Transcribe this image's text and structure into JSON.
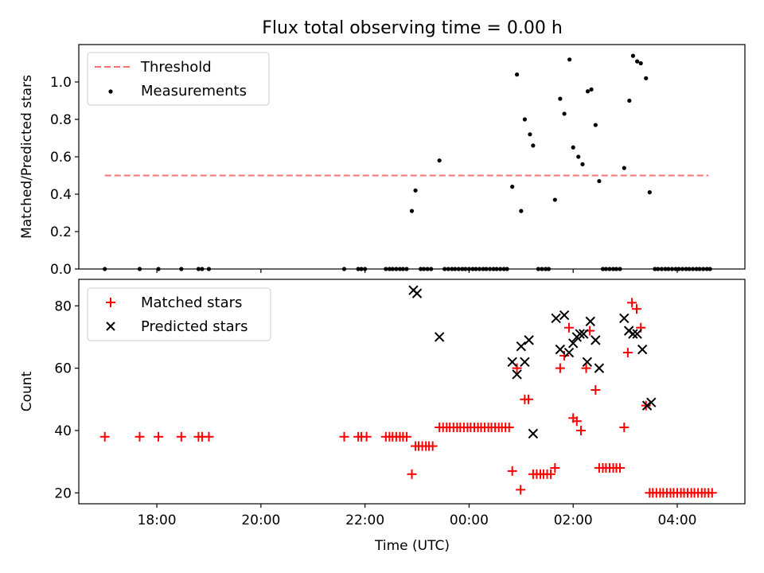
{
  "chart_data": [
    {
      "type": "scatter",
      "title": "Flux total observing time = 0.00 h",
      "xlabel": "",
      "ylabel": "Matched/Predicted stars",
      "x_unit": "hours since 00:00 UTC",
      "xlim": [
        -7.5,
        5.3
      ],
      "ylim": [
        0,
        1.2
      ],
      "yticks": [
        0.0,
        0.2,
        0.4,
        0.6,
        0.8,
        1.0
      ],
      "ytick_labels": [
        "0.0",
        "0.2",
        "0.4",
        "0.6",
        "0.8",
        "1.0"
      ],
      "legend_position": "upper-left",
      "threshold": {
        "name": "Threshold",
        "value": 0.5,
        "x_start": -7.0,
        "x_end": 4.6,
        "color": "#ff7070"
      },
      "series": [
        {
          "name": "Measurements",
          "color": "#000000",
          "marker": "dot",
          "points": [
            [
              -7.0,
              0
            ],
            [
              -6.33,
              0
            ],
            [
              -5.97,
              0
            ],
            [
              -5.53,
              0
            ],
            [
              -5.2,
              0
            ],
            [
              -5.13,
              0
            ],
            [
              -5.0,
              0
            ],
            [
              -2.4,
              0
            ],
            [
              -2.13,
              0
            ],
            [
              -2.07,
              0
            ],
            [
              -2.0,
              0
            ],
            [
              -1.6,
              0
            ],
            [
              -1.53,
              0
            ],
            [
              -1.47,
              0
            ],
            [
              -1.4,
              0
            ],
            [
              -1.33,
              0
            ],
            [
              -1.27,
              0
            ],
            [
              -1.2,
              0
            ],
            [
              -1.1,
              0.31
            ],
            [
              -1.03,
              0.42
            ],
            [
              -0.93,
              0
            ],
            [
              -0.87,
              0
            ],
            [
              -0.8,
              0
            ],
            [
              -0.73,
              0
            ],
            [
              -0.57,
              0.58
            ],
            [
              -0.47,
              0
            ],
            [
              -0.4,
              0
            ],
            [
              -0.33,
              0
            ],
            [
              -0.27,
              0
            ],
            [
              -0.2,
              0
            ],
            [
              -0.13,
              0
            ],
            [
              -0.07,
              0
            ],
            [
              0.0,
              0
            ],
            [
              0.07,
              0
            ],
            [
              0.13,
              0
            ],
            [
              0.2,
              0
            ],
            [
              0.27,
              0
            ],
            [
              0.33,
              0
            ],
            [
              0.4,
              0
            ],
            [
              0.47,
              0
            ],
            [
              0.53,
              0
            ],
            [
              0.6,
              0
            ],
            [
              0.67,
              0
            ],
            [
              0.73,
              0
            ],
            [
              0.83,
              0.44
            ],
            [
              0.92,
              1.04
            ],
            [
              1.0,
              0.31
            ],
            [
              1.07,
              0.8
            ],
            [
              1.17,
              0.72
            ],
            [
              1.23,
              0.66
            ],
            [
              1.33,
              0
            ],
            [
              1.4,
              0
            ],
            [
              1.47,
              0
            ],
            [
              1.53,
              0
            ],
            [
              1.65,
              0.37
            ],
            [
              1.75,
              0.91
            ],
            [
              1.83,
              0.83
            ],
            [
              1.93,
              1.12
            ],
            [
              2.0,
              0.65
            ],
            [
              2.1,
              0.6
            ],
            [
              2.18,
              0.56
            ],
            [
              2.28,
              0.95
            ],
            [
              2.35,
              0.96
            ],
            [
              2.43,
              0.77
            ],
            [
              2.5,
              0.47
            ],
            [
              2.57,
              0
            ],
            [
              2.63,
              0
            ],
            [
              2.7,
              0
            ],
            [
              2.77,
              0
            ],
            [
              2.83,
              0
            ],
            [
              2.9,
              0
            ],
            [
              2.98,
              0.54
            ],
            [
              3.08,
              0.9
            ],
            [
              3.15,
              1.14
            ],
            [
              3.23,
              1.11
            ],
            [
              3.3,
              1.1
            ],
            [
              3.4,
              1.02
            ],
            [
              3.47,
              0.41
            ],
            [
              3.57,
              0
            ],
            [
              3.63,
              0
            ],
            [
              3.7,
              0
            ],
            [
              3.77,
              0
            ],
            [
              3.83,
              0
            ],
            [
              3.9,
              0
            ],
            [
              3.97,
              0
            ],
            [
              4.03,
              0
            ],
            [
              4.1,
              0
            ],
            [
              4.17,
              0
            ],
            [
              4.23,
              0
            ],
            [
              4.3,
              0
            ],
            [
              4.37,
              0
            ],
            [
              4.43,
              0
            ],
            [
              4.5,
              0
            ],
            [
              4.57,
              0
            ],
            [
              4.63,
              0
            ]
          ]
        }
      ]
    },
    {
      "type": "scatter",
      "title": "",
      "xlabel": "Time (UTC)",
      "ylabel": "Count",
      "x_unit": "hours since 00:00 UTC",
      "xlim": [
        -7.5,
        5.3
      ],
      "ylim": [
        16.5,
        88.5
      ],
      "xticks": [
        -6,
        -4,
        -2,
        0,
        2,
        4
      ],
      "xtick_labels": [
        "18:00",
        "20:00",
        "22:00",
        "00:00",
        "02:00",
        "04:00"
      ],
      "yticks": [
        20,
        40,
        60,
        80
      ],
      "ytick_labels": [
        "20",
        "40",
        "60",
        "80"
      ],
      "legend_position": "upper-left",
      "series": [
        {
          "name": "Matched stars",
          "color": "#ff0000",
          "marker": "plus",
          "points": [
            [
              -7.0,
              38
            ],
            [
              -6.33,
              38
            ],
            [
              -5.97,
              38
            ],
            [
              -5.53,
              38
            ],
            [
              -5.2,
              38
            ],
            [
              -5.13,
              38
            ],
            [
              -5.0,
              38
            ],
            [
              -2.4,
              38
            ],
            [
              -2.13,
              38
            ],
            [
              -2.07,
              38
            ],
            [
              -1.97,
              38
            ],
            [
              -1.6,
              38
            ],
            [
              -1.53,
              38
            ],
            [
              -1.47,
              38
            ],
            [
              -1.4,
              38
            ],
            [
              -1.33,
              38
            ],
            [
              -1.27,
              38
            ],
            [
              -1.2,
              38
            ],
            [
              -1.1,
              26
            ],
            [
              -1.03,
              35
            ],
            [
              -0.97,
              35
            ],
            [
              -0.9,
              35
            ],
            [
              -0.83,
              35
            ],
            [
              -0.77,
              35
            ],
            [
              -0.7,
              35
            ],
            [
              -0.57,
              41
            ],
            [
              -0.5,
              41
            ],
            [
              -0.43,
              41
            ],
            [
              -0.37,
              41
            ],
            [
              -0.3,
              41
            ],
            [
              -0.23,
              41
            ],
            [
              -0.17,
              41
            ],
            [
              -0.1,
              41
            ],
            [
              -0.03,
              41
            ],
            [
              0.03,
              41
            ],
            [
              0.1,
              41
            ],
            [
              0.17,
              41
            ],
            [
              0.23,
              41
            ],
            [
              0.3,
              41
            ],
            [
              0.37,
              41
            ],
            [
              0.43,
              41
            ],
            [
              0.5,
              41
            ],
            [
              0.57,
              41
            ],
            [
              0.63,
              41
            ],
            [
              0.7,
              41
            ],
            [
              0.77,
              41
            ],
            [
              0.83,
              27
            ],
            [
              0.92,
              60
            ],
            [
              0.99,
              21
            ],
            [
              1.07,
              50
            ],
            [
              1.14,
              50
            ],
            [
              1.23,
              26
            ],
            [
              1.3,
              26
            ],
            [
              1.37,
              26
            ],
            [
              1.43,
              26
            ],
            [
              1.5,
              26
            ],
            [
              1.57,
              26
            ],
            [
              1.65,
              28
            ],
            [
              1.75,
              60
            ],
            [
              1.83,
              64
            ],
            [
              1.92,
              73
            ],
            [
              2.0,
              44
            ],
            [
              2.07,
              43
            ],
            [
              2.15,
              40
            ],
            [
              2.25,
              60
            ],
            [
              2.32,
              72
            ],
            [
              2.43,
              53
            ],
            [
              2.5,
              28
            ],
            [
              2.57,
              28
            ],
            [
              2.63,
              28
            ],
            [
              2.7,
              28
            ],
            [
              2.77,
              28
            ],
            [
              2.83,
              28
            ],
            [
              2.9,
              28
            ],
            [
              2.98,
              41
            ],
            [
              3.05,
              65
            ],
            [
              3.13,
              81
            ],
            [
              3.22,
              79
            ],
            [
              3.3,
              73
            ],
            [
              3.4,
              48
            ],
            [
              3.47,
              20
            ],
            [
              3.53,
              20
            ],
            [
              3.6,
              20
            ],
            [
              3.67,
              20
            ],
            [
              3.73,
              20
            ],
            [
              3.8,
              20
            ],
            [
              3.87,
              20
            ],
            [
              3.93,
              20
            ],
            [
              4.0,
              20
            ],
            [
              4.07,
              20
            ],
            [
              4.13,
              20
            ],
            [
              4.2,
              20
            ],
            [
              4.27,
              20
            ],
            [
              4.33,
              20
            ],
            [
              4.4,
              20
            ],
            [
              4.47,
              20
            ],
            [
              4.53,
              20
            ],
            [
              4.6,
              20
            ],
            [
              4.67,
              20
            ]
          ]
        },
        {
          "name": "Predicted stars",
          "color": "#000000",
          "marker": "x",
          "points": [
            [
              -1.07,
              85
            ],
            [
              -1.0,
              84
            ],
            [
              -0.57,
              70
            ],
            [
              0.83,
              62
            ],
            [
              0.92,
              58
            ],
            [
              1.0,
              67
            ],
            [
              1.07,
              62
            ],
            [
              1.15,
              69
            ],
            [
              1.23,
              39
            ],
            [
              1.67,
              76
            ],
            [
              1.75,
              66
            ],
            [
              1.83,
              77
            ],
            [
              1.92,
              65
            ],
            [
              2.0,
              68
            ],
            [
              2.07,
              70
            ],
            [
              2.13,
              71
            ],
            [
              2.2,
              71
            ],
            [
              2.27,
              62
            ],
            [
              2.33,
              75
            ],
            [
              2.43,
              69
            ],
            [
              2.5,
              60
            ],
            [
              2.98,
              76
            ],
            [
              3.07,
              72
            ],
            [
              3.15,
              71
            ],
            [
              3.23,
              71
            ],
            [
              3.33,
              66
            ],
            [
              3.42,
              48
            ],
            [
              3.5,
              49
            ]
          ]
        }
      ]
    }
  ]
}
